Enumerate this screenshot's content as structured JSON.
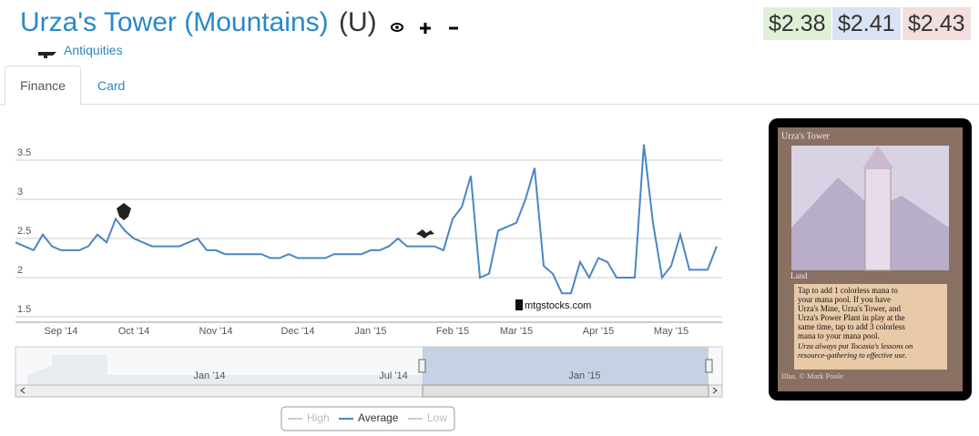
{
  "header": {
    "title": "Urza's Tower (Mountains)",
    "rarity": "(U)",
    "set": "Antiquities",
    "prices": [
      "$2.38",
      "$2.41",
      "$2.43"
    ]
  },
  "tabs": [
    "Finance",
    "Card"
  ],
  "chart_data": {
    "type": "line",
    "categories": [
      null,
      null,
      null,
      null,
      null,
      "Sep '14",
      null,
      null,
      null,
      null,
      null,
      null,
      null,
      "Oct '14",
      null,
      null,
      null,
      null,
      null,
      null,
      null,
      null,
      "Nov '14",
      null,
      null,
      null,
      null,
      null,
      null,
      null,
      null,
      "Dec '14",
      null,
      null,
      null,
      null,
      null,
      null,
      null,
      "Jan '15",
      null,
      null,
      null,
      null,
      null,
      null,
      null,
      null,
      "Feb '15",
      null,
      null,
      null,
      null,
      null,
      null,
      "Mar '15",
      null,
      null,
      null,
      null,
      null,
      null,
      null,
      null,
      "Apr '15",
      null,
      null,
      null,
      null,
      null,
      null,
      null,
      "May '15",
      null,
      null,
      null,
      null,
      null
    ],
    "series": [
      {
        "name": "Average",
        "color": "#4a86c5",
        "values": [
          2.45,
          2.4,
          2.35,
          2.55,
          2.4,
          2.35,
          2.35,
          2.35,
          2.4,
          2.55,
          2.45,
          2.75,
          2.6,
          2.5,
          2.45,
          2.4,
          2.4,
          2.4,
          2.4,
          2.45,
          2.5,
          2.35,
          2.35,
          2.3,
          2.3,
          2.3,
          2.3,
          2.3,
          2.25,
          2.25,
          2.3,
          2.25,
          2.25,
          2.25,
          2.25,
          2.3,
          2.3,
          2.3,
          2.3,
          2.35,
          2.35,
          2.4,
          2.5,
          2.4,
          2.4,
          2.4,
          2.4,
          2.35,
          2.75,
          2.9,
          3.3,
          2.0,
          2.05,
          2.6,
          2.65,
          2.7,
          3.0,
          3.4,
          2.15,
          2.05,
          1.8,
          1.8,
          2.2,
          2.0,
          2.25,
          2.2,
          2.0,
          2.0,
          2.0,
          3.7,
          2.7,
          2.0,
          2.15,
          2.55,
          2.1,
          2.1,
          2.1,
          2.4
        ]
      }
    ],
    "inactive_series": [
      "High",
      "Low"
    ],
    "ylim": [
      1.5,
      4
    ],
    "yticks": [
      1.5,
      2,
      2.5,
      3,
      3.5
    ],
    "grid": true,
    "watermark": "mtgstocks.com",
    "navigator_labels": [
      "Jan '14",
      "Jul '14",
      "Jan '15"
    ]
  },
  "card": {
    "name": "Urza's Tower",
    "type_line": "Land",
    "rules_lines": [
      "Tap to add 1 colorless mana to",
      "your mana pool. If you have",
      "Urza's Mine, Urza's Tower, and",
      "Urza's Power Plant in play at the",
      "same time, tap to add 3 colorless",
      "mana to your mana pool."
    ],
    "flavor_lines": [
      "Urza always put Tocasia's lessons on",
      "resource-gathering to effective use."
    ],
    "illustrator": "Illus. © Mark Poole"
  }
}
